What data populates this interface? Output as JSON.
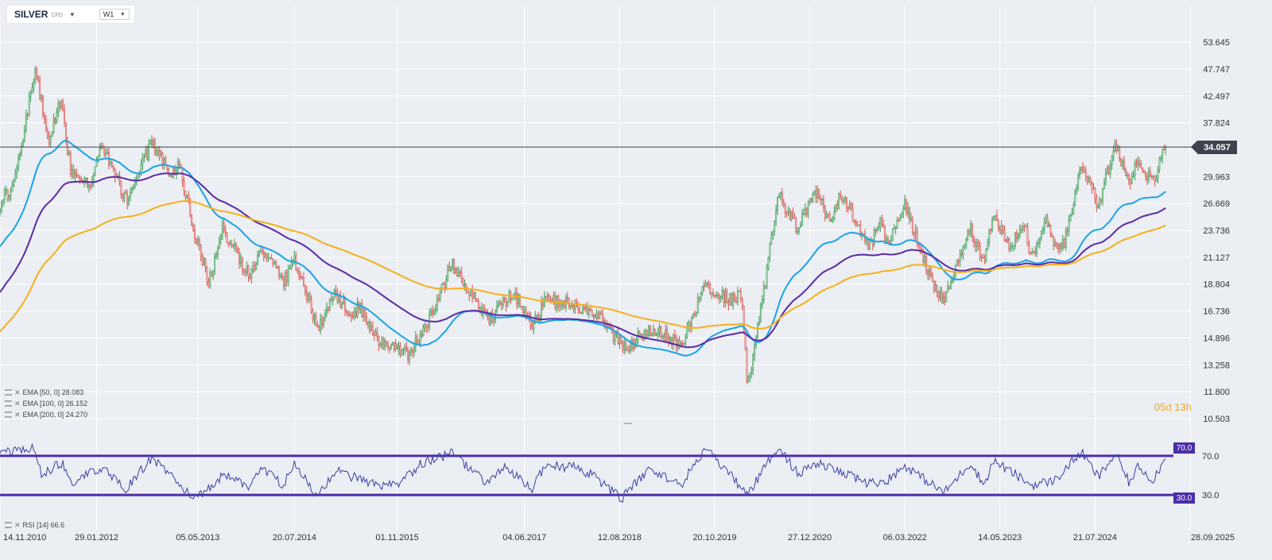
{
  "toolbar": {
    "symbol": "SILVER",
    "instrument_type": "CFD",
    "timeframe": "W1"
  },
  "legend": {
    "ema_50": "EMA [50, 0] 28.083",
    "ema_100": "EMA [100, 0] 26.152",
    "ema_200": "EMA [200, 0] 24.270",
    "rsi": "RSI [14] 66.6"
  },
  "countdown": {
    "days": "05",
    "day_unit": "d",
    "hours": "13",
    "hour_unit": "h"
  },
  "colors": {
    "bull": "#3f9b5a",
    "bear": "#d9534f",
    "ema_50": "#1aa3e8",
    "ema_100": "#5b2aa6",
    "ema_200": "#f5b01a",
    "rsi_line": "#3b3fa6",
    "rsi_levels": "#4b2ea8",
    "last_price_line": "#3d4450",
    "grid": "#ffffff"
  },
  "chart_data": {
    "type": "candlestick",
    "timeframe": "W1",
    "y_scale": "log",
    "ylim": [
      10.503,
      56.5
    ],
    "y_ticks": [
      "53.645",
      "47.747",
      "42.497",
      "37.824",
      "29.963",
      "26.669",
      "23.736",
      "21.127",
      "18.804",
      "16.736",
      "14.896",
      "13.258",
      "11.800",
      "10.503"
    ],
    "x_range": [
      "14.11.2010",
      "28.09.2025"
    ],
    "x_ticks": [
      "14.11.2010",
      "29.01.2012",
      "05.05.2013",
      "20.07.2014",
      "01.11.2015",
      "04.06.2017",
      "12.08.2018",
      "20.10.2019",
      "27.12.2020",
      "06.03.2022",
      "14.05.2023",
      "21.07.2024",
      "28.09.2025"
    ],
    "last_price": "34.057",
    "price_keypoints": [
      [
        "2010-11-14",
        26.5
      ],
      [
        "2011-01-20",
        29.5
      ],
      [
        "2011-04-25",
        48.5
      ],
      [
        "2011-06-20",
        35.0
      ],
      [
        "2011-08-20",
        42.0
      ],
      [
        "2011-10-01",
        31.0
      ],
      [
        "2011-12-25",
        28.5
      ],
      [
        "2012-02-25",
        34.5
      ],
      [
        "2012-06-10",
        27.0
      ],
      [
        "2012-10-05",
        34.5
      ],
      [
        "2012-12-30",
        30.5
      ],
      [
        "2013-02-10",
        31.5
      ],
      [
        "2013-04-15",
        24.0
      ],
      [
        "2013-06-25",
        19.0
      ],
      [
        "2013-08-25",
        24.0
      ],
      [
        "2013-12-25",
        19.5
      ],
      [
        "2014-02-25",
        21.8
      ],
      [
        "2014-06-01",
        19.0
      ],
      [
        "2014-07-15",
        21.0
      ],
      [
        "2014-11-05",
        15.5
      ],
      [
        "2015-01-20",
        18.0
      ],
      [
        "2015-04-01",
        16.5
      ],
      [
        "2015-05-15",
        17.0
      ],
      [
        "2015-08-15",
        14.5
      ],
      [
        "2015-12-20",
        13.9
      ],
      [
        "2016-03-10",
        15.5
      ],
      [
        "2016-07-05",
        20.5
      ],
      [
        "2016-12-20",
        16.0
      ],
      [
        "2017-04-15",
        18.2
      ],
      [
        "2017-07-10",
        15.5
      ],
      [
        "2017-09-05",
        17.6
      ],
      [
        "2018-01-20",
        17.2
      ],
      [
        "2018-04-15",
        16.6
      ],
      [
        "2018-09-10",
        14.3
      ],
      [
        "2018-12-30",
        15.5
      ],
      [
        "2019-05-20",
        14.5
      ],
      [
        "2019-09-05",
        18.8
      ],
      [
        "2019-12-25",
        17.5
      ],
      [
        "2020-02-20",
        18.0
      ],
      [
        "2020-03-18",
        12.0
      ],
      [
        "2020-05-25",
        17.5
      ],
      [
        "2020-08-05",
        28.0
      ],
      [
        "2020-11-01",
        23.8
      ],
      [
        "2021-02-01",
        28.5
      ],
      [
        "2021-03-31",
        24.0
      ],
      [
        "2021-05-20",
        28.0
      ],
      [
        "2021-09-25",
        22.0
      ],
      [
        "2021-11-15",
        25.2
      ],
      [
        "2021-12-15",
        22.0
      ],
      [
        "2022-03-08",
        26.5
      ],
      [
        "2022-07-15",
        18.5
      ],
      [
        "2022-09-01",
        17.6
      ],
      [
        "2023-01-01",
        24.0
      ],
      [
        "2023-02-25",
        20.8
      ],
      [
        "2023-04-15",
        25.5
      ],
      [
        "2023-06-25",
        22.2
      ],
      [
        "2023-09-01",
        24.5
      ],
      [
        "2023-10-05",
        21.0
      ],
      [
        "2023-12-05",
        25.0
      ],
      [
        "2024-01-20",
        22.5
      ],
      [
        "2024-03-01",
        22.3
      ],
      [
        "2024-05-20",
        31.8
      ],
      [
        "2024-08-05",
        26.5
      ],
      [
        "2024-10-22",
        34.3
      ],
      [
        "2024-12-25",
        29.0
      ],
      [
        "2025-02-05",
        32.5
      ],
      [
        "2025-04-08",
        29.0
      ],
      [
        "2025-06-08",
        34.0
      ]
    ],
    "ema_50": {
      "label": "EMA [50, 0]",
      "last": 28.083
    },
    "ema_100": {
      "label": "EMA [100, 0]",
      "last": 26.152
    },
    "ema_200": {
      "label": "EMA [200, 0]",
      "last": 24.27
    },
    "rsi": {
      "label": "RSI [14]",
      "period": 14,
      "last": 66.6,
      "levels": [
        "70.0",
        "30.0"
      ],
      "keypoints": [
        [
          "2010-11-14",
          72
        ],
        [
          "2011-04-25",
          78
        ],
        [
          "2011-05-20",
          50
        ],
        [
          "2011-08-25",
          63
        ],
        [
          "2011-10-01",
          42
        ],
        [
          "2012-02-20",
          58
        ],
        [
          "2012-06-10",
          35
        ],
        [
          "2012-10-05",
          68
        ],
        [
          "2013-01-15",
          48
        ],
        [
          "2013-04-20",
          24
        ],
        [
          "2013-09-05",
          52
        ],
        [
          "2013-12-20",
          38
        ],
        [
          "2014-02-25",
          58
        ],
        [
          "2014-06-01",
          40
        ],
        [
          "2014-07-15",
          62
        ],
        [
          "2014-11-05",
          28
        ],
        [
          "2015-01-20",
          55
        ],
        [
          "2015-08-20",
          38
        ],
        [
          "2015-11-20",
          42
        ],
        [
          "2016-02-15",
          62
        ],
        [
          "2016-07-05",
          73
        ],
        [
          "2016-12-15",
          42
        ],
        [
          "2017-03-01",
          58
        ],
        [
          "2017-07-10",
          36
        ],
        [
          "2017-09-05",
          61
        ],
        [
          "2018-01-20",
          58
        ],
        [
          "2018-04-15",
          50
        ],
        [
          "2018-08-20",
          26
        ],
        [
          "2018-12-28",
          57
        ],
        [
          "2019-05-20",
          40
        ],
        [
          "2019-09-05",
          77
        ],
        [
          "2019-12-25",
          52
        ],
        [
          "2020-03-18",
          30
        ],
        [
          "2020-08-05",
          80
        ],
        [
          "2020-11-01",
          52
        ],
        [
          "2021-02-01",
          62
        ],
        [
          "2021-09-25",
          42
        ],
        [
          "2021-12-15",
          45
        ],
        [
          "2022-03-08",
          60
        ],
        [
          "2022-09-01",
          32
        ],
        [
          "2023-01-01",
          63
        ],
        [
          "2023-03-01",
          40
        ],
        [
          "2023-04-15",
          65
        ],
        [
          "2023-10-05",
          40
        ],
        [
          "2024-01-20",
          45
        ],
        [
          "2024-05-20",
          74
        ],
        [
          "2024-08-05",
          48
        ],
        [
          "2024-10-22",
          72
        ],
        [
          "2024-12-25",
          42
        ],
        [
          "2025-02-05",
          60
        ],
        [
          "2025-04-08",
          45
        ],
        [
          "2025-06-08",
          66.6
        ]
      ]
    }
  }
}
